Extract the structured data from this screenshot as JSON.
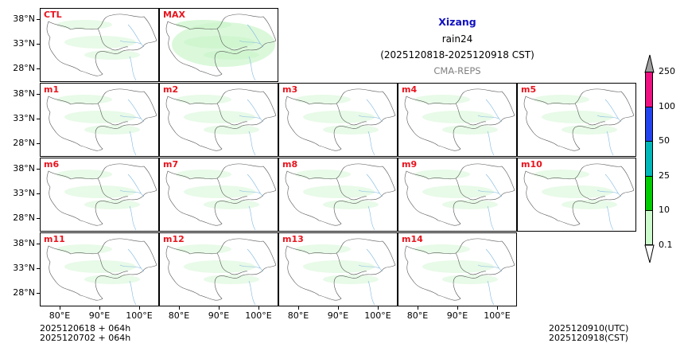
{
  "chart_data": {
    "type": "heatmap",
    "title": "Xizang",
    "subtitle": "rain24",
    "period": "(2025120818-2025120918 CST)",
    "model": "CMA-REPS",
    "panels": [
      "CTL",
      "MAX",
      "m1",
      "m2",
      "m3",
      "m4",
      "m5",
      "m6",
      "m7",
      "m8",
      "m9",
      "m10",
      "m11",
      "m12",
      "m13",
      "m14"
    ],
    "ytick_labels": [
      "38°N",
      "33°N",
      "28°N"
    ],
    "xtick_labels": [
      "80°E",
      "90°E",
      "100°E"
    ],
    "colorbar": {
      "levels": [
        "0.1",
        "10",
        "25",
        "50",
        "100",
        "250"
      ],
      "colors": [
        "#ccfccc",
        "#00cc00",
        "#00b8b8",
        "#2244ee",
        "#ee1180",
        "#a0a0a0"
      ],
      "extend": "both"
    },
    "domain_lon": [
      75,
      105
    ],
    "domain_lat": [
      25,
      40
    ],
    "grid": false
  },
  "header": {
    "title": "Xizang",
    "variable": "rain24",
    "period": "(2025120818-2025120918 CST)",
    "model": "CMA-REPS"
  },
  "footer": {
    "init_line1": "2025120618  +  064h",
    "init_line2": "2025120702  +  064h",
    "valid_utc": "2025120910(UTC)",
    "valid_cst": "2025120918(CST)"
  },
  "colors": {
    "label_red": "#e8141e",
    "title_blue": "#1010c0",
    "light_green": "#ccf5cc",
    "river_blue": "#7fb8e0"
  }
}
